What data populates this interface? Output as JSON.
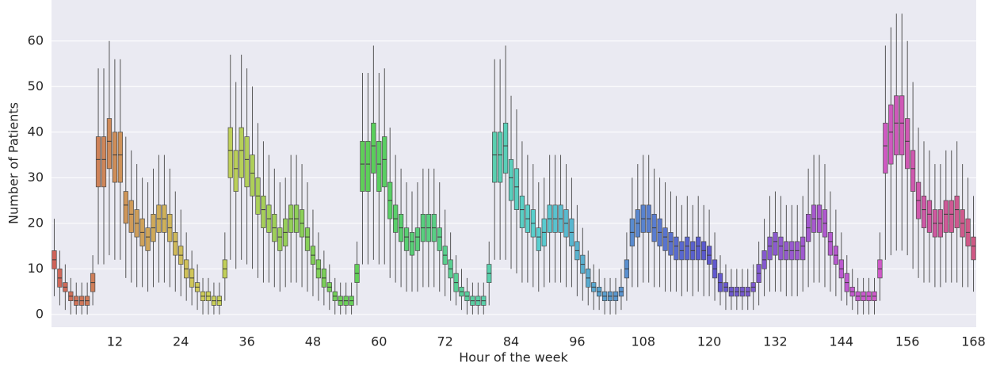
{
  "chart_data": {
    "type": "box",
    "x_label": "Hour of the week",
    "y_label": "Number of Patients",
    "categories": [
      1,
      2,
      3,
      4,
      5,
      6,
      7,
      8,
      9,
      10,
      11,
      12,
      13,
      14,
      15,
      16,
      17,
      18,
      19,
      20,
      21,
      22,
      23,
      24,
      25,
      26,
      27,
      28,
      29,
      30,
      31,
      32,
      33,
      34,
      35,
      36,
      37,
      38,
      39,
      40,
      41,
      42,
      43,
      44,
      45,
      46,
      47,
      48,
      49,
      50,
      51,
      52,
      53,
      54,
      55,
      56,
      57,
      58,
      59,
      60,
      61,
      62,
      63,
      64,
      65,
      66,
      67,
      68,
      69,
      70,
      71,
      72,
      73,
      74,
      75,
      76,
      77,
      78,
      79,
      80,
      81,
      82,
      83,
      84,
      85,
      86,
      87,
      88,
      89,
      90,
      91,
      92,
      93,
      94,
      95,
      96,
      97,
      98,
      99,
      100,
      101,
      102,
      103,
      104,
      105,
      106,
      107,
      108,
      109,
      110,
      111,
      112,
      113,
      114,
      115,
      116,
      117,
      118,
      119,
      120,
      121,
      122,
      123,
      124,
      125,
      126,
      127,
      128,
      129,
      130,
      131,
      132,
      133,
      134,
      135,
      136,
      137,
      138,
      139,
      140,
      141,
      142,
      143,
      144,
      145,
      146,
      147,
      148,
      149,
      150,
      151,
      152,
      153,
      154,
      155,
      156,
      157,
      158,
      159,
      160,
      161,
      162,
      163,
      164,
      165,
      166,
      167,
      168
    ],
    "xticks": [
      12,
      24,
      36,
      48,
      60,
      72,
      84,
      96,
      108,
      120,
      132,
      144,
      156,
      168
    ],
    "median": [
      12,
      8,
      6,
      4,
      3,
      3,
      3,
      7,
      34,
      34,
      38,
      35,
      35,
      24,
      22,
      20,
      18,
      17,
      19,
      21,
      21,
      19,
      16,
      13,
      10,
      8,
      6,
      4,
      4,
      3,
      3,
      10,
      36,
      32,
      36,
      34,
      31,
      26,
      23,
      21,
      19,
      17,
      18,
      21,
      21,
      20,
      17,
      13,
      10,
      8,
      6,
      4,
      3,
      3,
      3,
      9,
      33,
      33,
      37,
      33,
      34,
      25,
      21,
      19,
      17,
      16,
      17,
      19,
      19,
      19,
      17,
      13,
      10,
      7,
      5,
      4,
      3,
      3,
      3,
      9,
      35,
      35,
      37,
      30,
      28,
      23,
      21,
      20,
      17,
      18,
      21,
      21,
      21,
      20,
      18,
      14,
      11,
      8,
      6,
      5,
      4,
      4,
      4,
      5,
      10,
      18,
      20,
      21,
      21,
      19,
      18,
      17,
      16,
      15,
      14,
      15,
      14,
      15,
      14,
      13,
      10,
      7,
      6,
      5,
      5,
      5,
      5,
      6,
      9,
      12,
      15,
      16,
      15,
      14,
      14,
      14,
      15,
      19,
      21,
      21,
      20,
      16,
      13,
      10,
      7,
      5,
      4,
      4,
      4,
      4,
      10,
      37,
      40,
      42,
      42,
      38,
      32,
      25,
      23,
      22,
      20,
      20,
      22,
      22,
      23,
      20,
      18,
      15
    ],
    "q1": [
      10,
      6,
      5,
      3,
      2,
      2,
      2,
      5,
      28,
      28,
      32,
      29,
      29,
      20,
      18,
      17,
      15,
      14,
      16,
      18,
      18,
      16,
      13,
      11,
      8,
      6,
      5,
      3,
      3,
      2,
      2,
      8,
      30,
      27,
      30,
      28,
      26,
      22,
      19,
      18,
      16,
      14,
      15,
      18,
      18,
      17,
      14,
      11,
      8,
      6,
      5,
      3,
      2,
      2,
      2,
      7,
      27,
      27,
      31,
      27,
      28,
      21,
      18,
      16,
      14,
      13,
      14,
      16,
      16,
      16,
      14,
      11,
      8,
      5,
      4,
      3,
      2,
      2,
      2,
      7,
      29,
      29,
      31,
      25,
      23,
      19,
      18,
      17,
      14,
      15,
      18,
      18,
      18,
      17,
      15,
      12,
      9,
      6,
      5,
      4,
      3,
      3,
      3,
      4,
      8,
      15,
      17,
      18,
      18,
      16,
      15,
      14,
      13,
      12,
      12,
      12,
      12,
      12,
      12,
      11,
      8,
      5,
      5,
      4,
      4,
      4,
      4,
      5,
      7,
      10,
      12,
      13,
      12,
      12,
      12,
      12,
      12,
      16,
      18,
      18,
      17,
      13,
      11,
      8,
      5,
      4,
      3,
      3,
      3,
      3,
      8,
      31,
      33,
      35,
      35,
      32,
      27,
      21,
      19,
      18,
      17,
      17,
      18,
      18,
      19,
      17,
      15,
      12
    ],
    "q3": [
      14,
      10,
      7,
      5,
      4,
      4,
      4,
      9,
      39,
      39,
      43,
      40,
      40,
      27,
      25,
      23,
      21,
      19,
      22,
      24,
      24,
      22,
      18,
      15,
      12,
      10,
      7,
      5,
      5,
      4,
      4,
      12,
      41,
      36,
      41,
      39,
      35,
      30,
      26,
      24,
      22,
      19,
      21,
      24,
      24,
      23,
      19,
      15,
      12,
      10,
      7,
      5,
      4,
      4,
      4,
      11,
      38,
      38,
      42,
      38,
      39,
      29,
      24,
      22,
      19,
      18,
      19,
      22,
      22,
      22,
      19,
      15,
      12,
      9,
      6,
      5,
      4,
      4,
      4,
      11,
      40,
      40,
      42,
      34,
      32,
      26,
      24,
      23,
      19,
      21,
      24,
      24,
      24,
      23,
      21,
      16,
      13,
      10,
      7,
      6,
      5,
      5,
      5,
      6,
      12,
      21,
      23,
      24,
      24,
      22,
      21,
      19,
      18,
      17,
      16,
      17,
      16,
      17,
      16,
      15,
      12,
      9,
      7,
      6,
      6,
      6,
      6,
      7,
      11,
      14,
      17,
      18,
      17,
      16,
      16,
      16,
      17,
      22,
      24,
      24,
      23,
      18,
      15,
      12,
      9,
      6,
      5,
      5,
      5,
      5,
      12,
      42,
      46,
      48,
      48,
      43,
      36,
      29,
      26,
      25,
      23,
      23,
      25,
      25,
      26,
      23,
      21,
      17
    ],
    "whislo": [
      4,
      2,
      1,
      0,
      0,
      0,
      0,
      2,
      11,
      11,
      13,
      12,
      12,
      8,
      7,
      6,
      6,
      5,
      6,
      7,
      7,
      6,
      5,
      4,
      3,
      2,
      1,
      0,
      0,
      0,
      0,
      3,
      12,
      10,
      12,
      11,
      10,
      8,
      7,
      7,
      6,
      5,
      6,
      7,
      7,
      6,
      5,
      4,
      3,
      2,
      1,
      0,
      0,
      0,
      0,
      2,
      11,
      11,
      12,
      11,
      11,
      8,
      7,
      6,
      5,
      5,
      5,
      6,
      6,
      6,
      5,
      4,
      3,
      2,
      1,
      0,
      0,
      0,
      0,
      2,
      12,
      12,
      12,
      10,
      9,
      7,
      7,
      6,
      5,
      6,
      7,
      7,
      7,
      6,
      6,
      4,
      3,
      2,
      1,
      1,
      0,
      0,
      0,
      1,
      3,
      6,
      6,
      7,
      7,
      6,
      6,
      5,
      5,
      5,
      4,
      5,
      4,
      5,
      4,
      4,
      3,
      2,
      1,
      1,
      1,
      1,
      1,
      1,
      2,
      4,
      5,
      5,
      5,
      4,
      4,
      4,
      5,
      6,
      7,
      7,
      6,
      5,
      4,
      3,
      2,
      1,
      0,
      0,
      0,
      0,
      3,
      12,
      13,
      14,
      14,
      13,
      10,
      8,
      7,
      7,
      6,
      6,
      7,
      7,
      7,
      6,
      6,
      5
    ],
    "whishi": [
      21,
      14,
      11,
      8,
      7,
      7,
      7,
      13,
      54,
      54,
      60,
      56,
      56,
      39,
      36,
      33,
      30,
      29,
      32,
      35,
      35,
      32,
      27,
      23,
      18,
      14,
      11,
      8,
      8,
      7,
      7,
      18,
      57,
      51,
      57,
      54,
      50,
      42,
      38,
      35,
      32,
      29,
      30,
      35,
      35,
      33,
      29,
      23,
      18,
      14,
      11,
      8,
      7,
      7,
      7,
      16,
      53,
      53,
      59,
      53,
      54,
      41,
      35,
      32,
      29,
      27,
      29,
      32,
      32,
      32,
      29,
      23,
      18,
      13,
      10,
      8,
      7,
      7,
      7,
      16,
      56,
      56,
      59,
      48,
      45,
      38,
      35,
      33,
      29,
      30,
      35,
      35,
      35,
      33,
      30,
      24,
      19,
      14,
      11,
      10,
      8,
      8,
      8,
      10,
      18,
      30,
      33,
      35,
      35,
      32,
      30,
      29,
      27,
      26,
      24,
      26,
      24,
      26,
      24,
      23,
      18,
      13,
      11,
      10,
      10,
      10,
      10,
      11,
      16,
      21,
      26,
      27,
      26,
      24,
      24,
      24,
      26,
      32,
      35,
      35,
      33,
      27,
      23,
      18,
      13,
      10,
      8,
      8,
      8,
      8,
      18,
      59,
      63,
      66,
      66,
      60,
      51,
      41,
      38,
      36,
      33,
      33,
      36,
      36,
      38,
      33,
      30,
      26
    ],
    "palette": "husl",
    "ylim": [
      -2.8,
      69
    ],
    "yticks": [
      0,
      10,
      20,
      30,
      40,
      50,
      60
    ],
    "grid": true
  }
}
